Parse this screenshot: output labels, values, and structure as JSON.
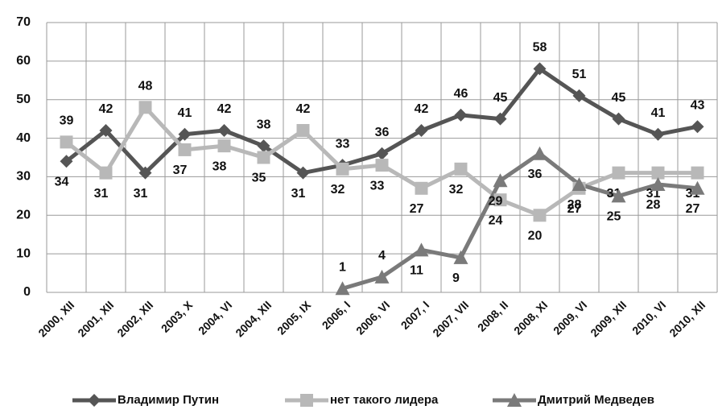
{
  "chart_data": {
    "type": "line",
    "categories": [
      "2000, XII",
      "2001, XII",
      "2002, XII",
      "2003, X",
      "2004, VI",
      "2004, XII",
      "2005, IX",
      "2006, I",
      "2006, VI",
      "2007, I",
      "2007, VII",
      "2008, II",
      "2008, XI",
      "2009, VI",
      "2009, XII",
      "2010, VI",
      "2010, XII"
    ],
    "series": [
      {
        "name": "Владимир Путин",
        "color": "#555555",
        "marker": "diamond",
        "values": [
          34,
          42,
          31,
          41,
          42,
          38,
          31,
          33,
          36,
          42,
          46,
          45,
          58,
          51,
          45,
          41,
          43
        ]
      },
      {
        "name": "нет такого лидера",
        "color": "#b8b8b8",
        "marker": "square",
        "values": [
          39,
          31,
          48,
          37,
          38,
          35,
          42,
          32,
          33,
          27,
          32,
          24,
          20,
          27,
          31,
          31,
          31
        ]
      },
      {
        "name": "Дмитрий Медведев",
        "color": "#7a7a7a",
        "marker": "triangle",
        "values": [
          null,
          null,
          null,
          null,
          null,
          null,
          null,
          1,
          4,
          11,
          9,
          29,
          36,
          28,
          25,
          28,
          27
        ]
      }
    ],
    "ylim": [
      0,
      70
    ],
    "yticks": [
      0,
      10,
      20,
      30,
      40,
      50,
      60,
      70
    ],
    "grid": true,
    "legend": "bottom"
  }
}
